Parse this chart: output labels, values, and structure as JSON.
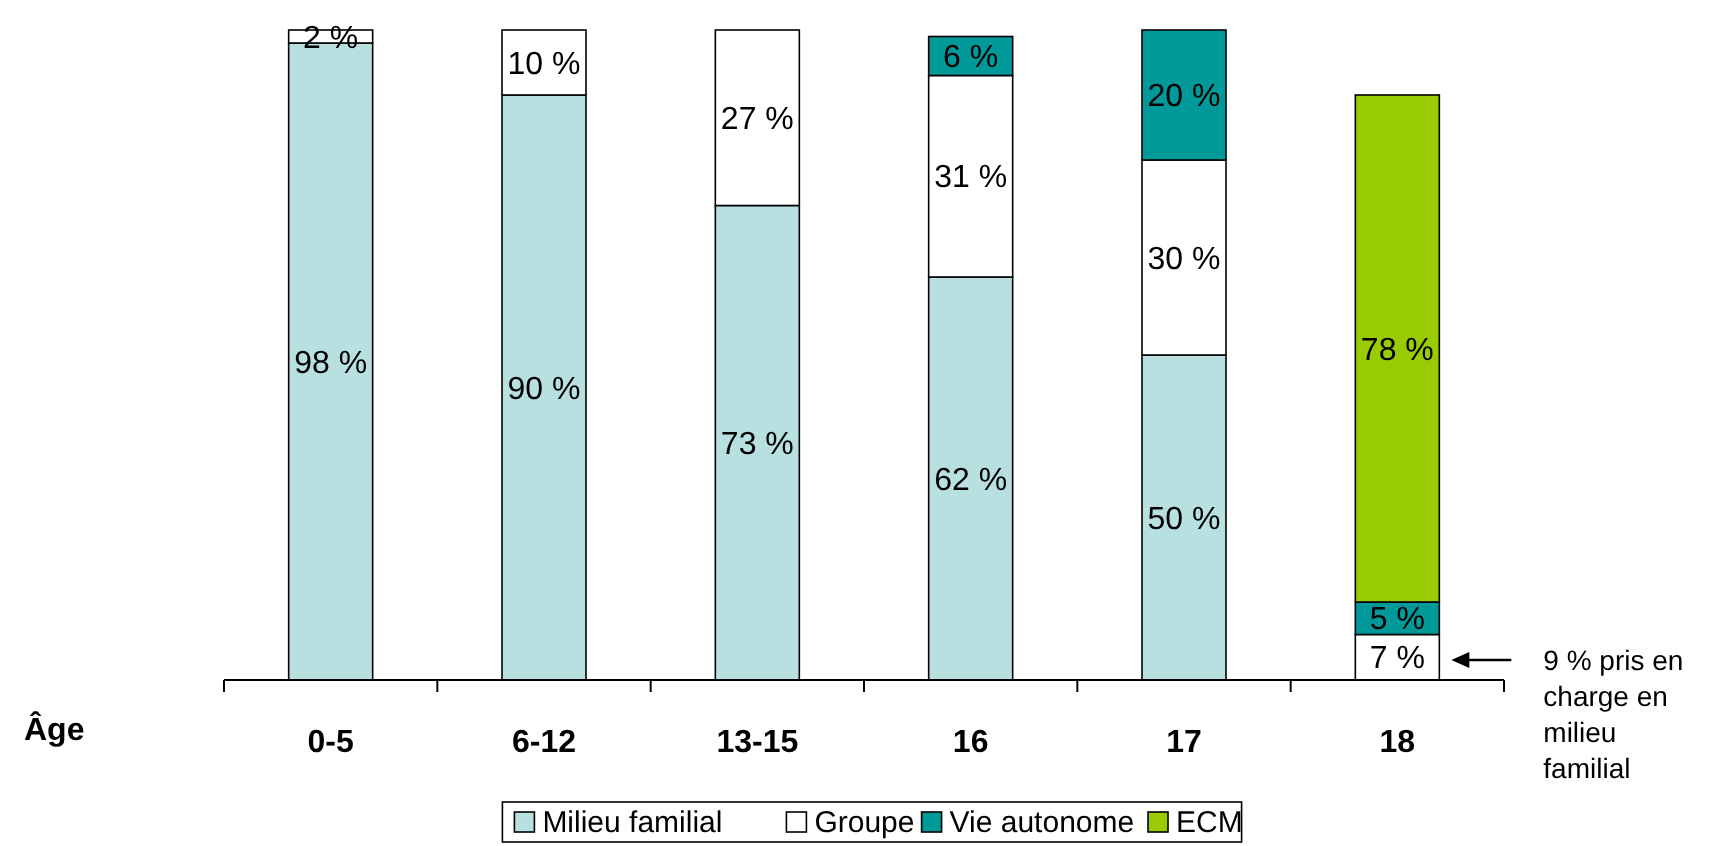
{
  "chart_data": {
    "type": "bar",
    "stacked": true,
    "xlabel": "Âge",
    "categories": [
      "0-5",
      "6-12",
      "13-15",
      "16",
      "17",
      "18"
    ],
    "series": [
      {
        "name": "Milieu familial",
        "color": "#b8e0e0",
        "values": [
          98,
          90,
          73,
          62,
          50,
          null
        ],
        "value_labels": [
          "98 %",
          "90 %",
          "73 %",
          "62 %",
          "50 %",
          null
        ]
      },
      {
        "name": "Groupe",
        "color": "#ffffff",
        "values": [
          2,
          10,
          27,
          31,
          30,
          7
        ],
        "value_labels": [
          "2 %",
          "10 %",
          "27 %",
          "31 %",
          "30 %",
          "7 %"
        ]
      },
      {
        "name": "Vie autonome",
        "color": "#009999",
        "values": [
          null,
          null,
          null,
          6,
          20,
          5
        ],
        "value_labels": [
          null,
          null,
          null,
          "6 %",
          "20 %",
          "5 %"
        ]
      },
      {
        "name": "ECM",
        "color": "#99cc00",
        "values": [
          null,
          null,
          null,
          null,
          null,
          78
        ],
        "value_labels": [
          null,
          null,
          null,
          null,
          null,
          "78 %"
        ]
      }
    ],
    "legend": "bottom",
    "annotations": [
      "9 % pris en charge en milieu familial"
    ]
  }
}
